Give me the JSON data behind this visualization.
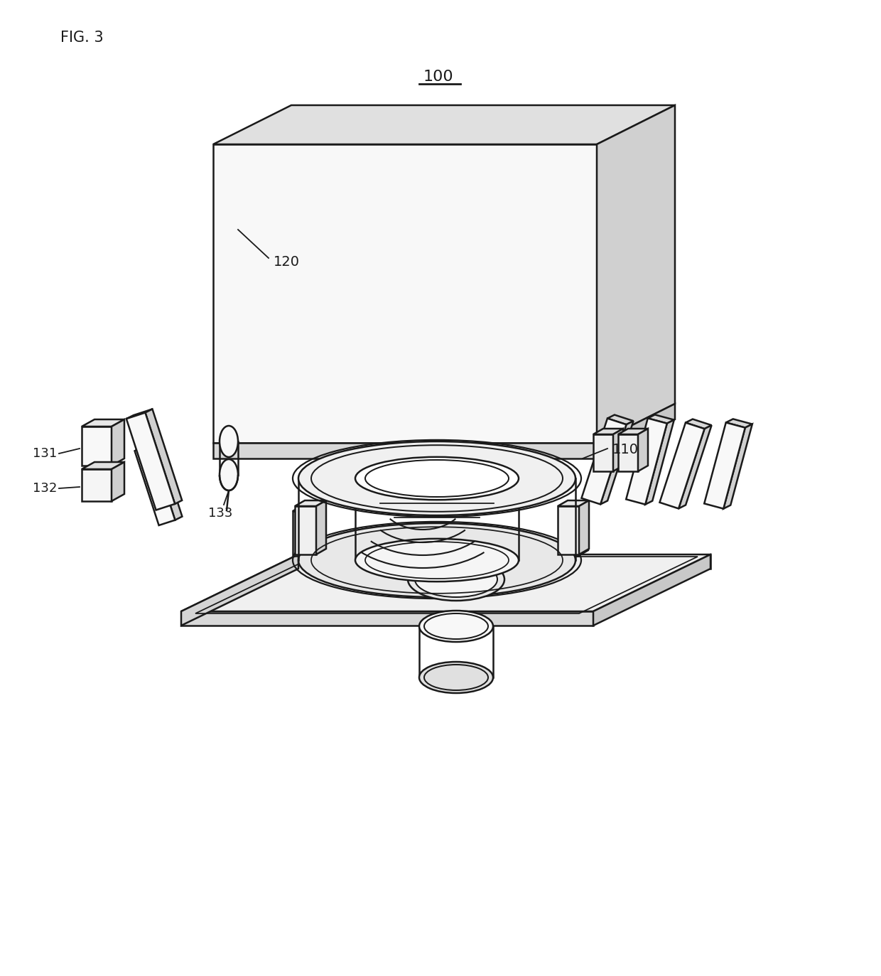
{
  "fig_label": "FIG. 3",
  "part_100": "100",
  "part_110": "110",
  "part_120": "120",
  "part_131": "131",
  "part_132": "132",
  "part_133": "133",
  "bg_color": "#ffffff",
  "lc": "#1a1a1a",
  "lw": 1.8,
  "fc_white": "#ffffff",
  "fc_light": "#eeeeee",
  "fc_mid": "#d8d8d8",
  "fc_dark": "#c0c0c0"
}
